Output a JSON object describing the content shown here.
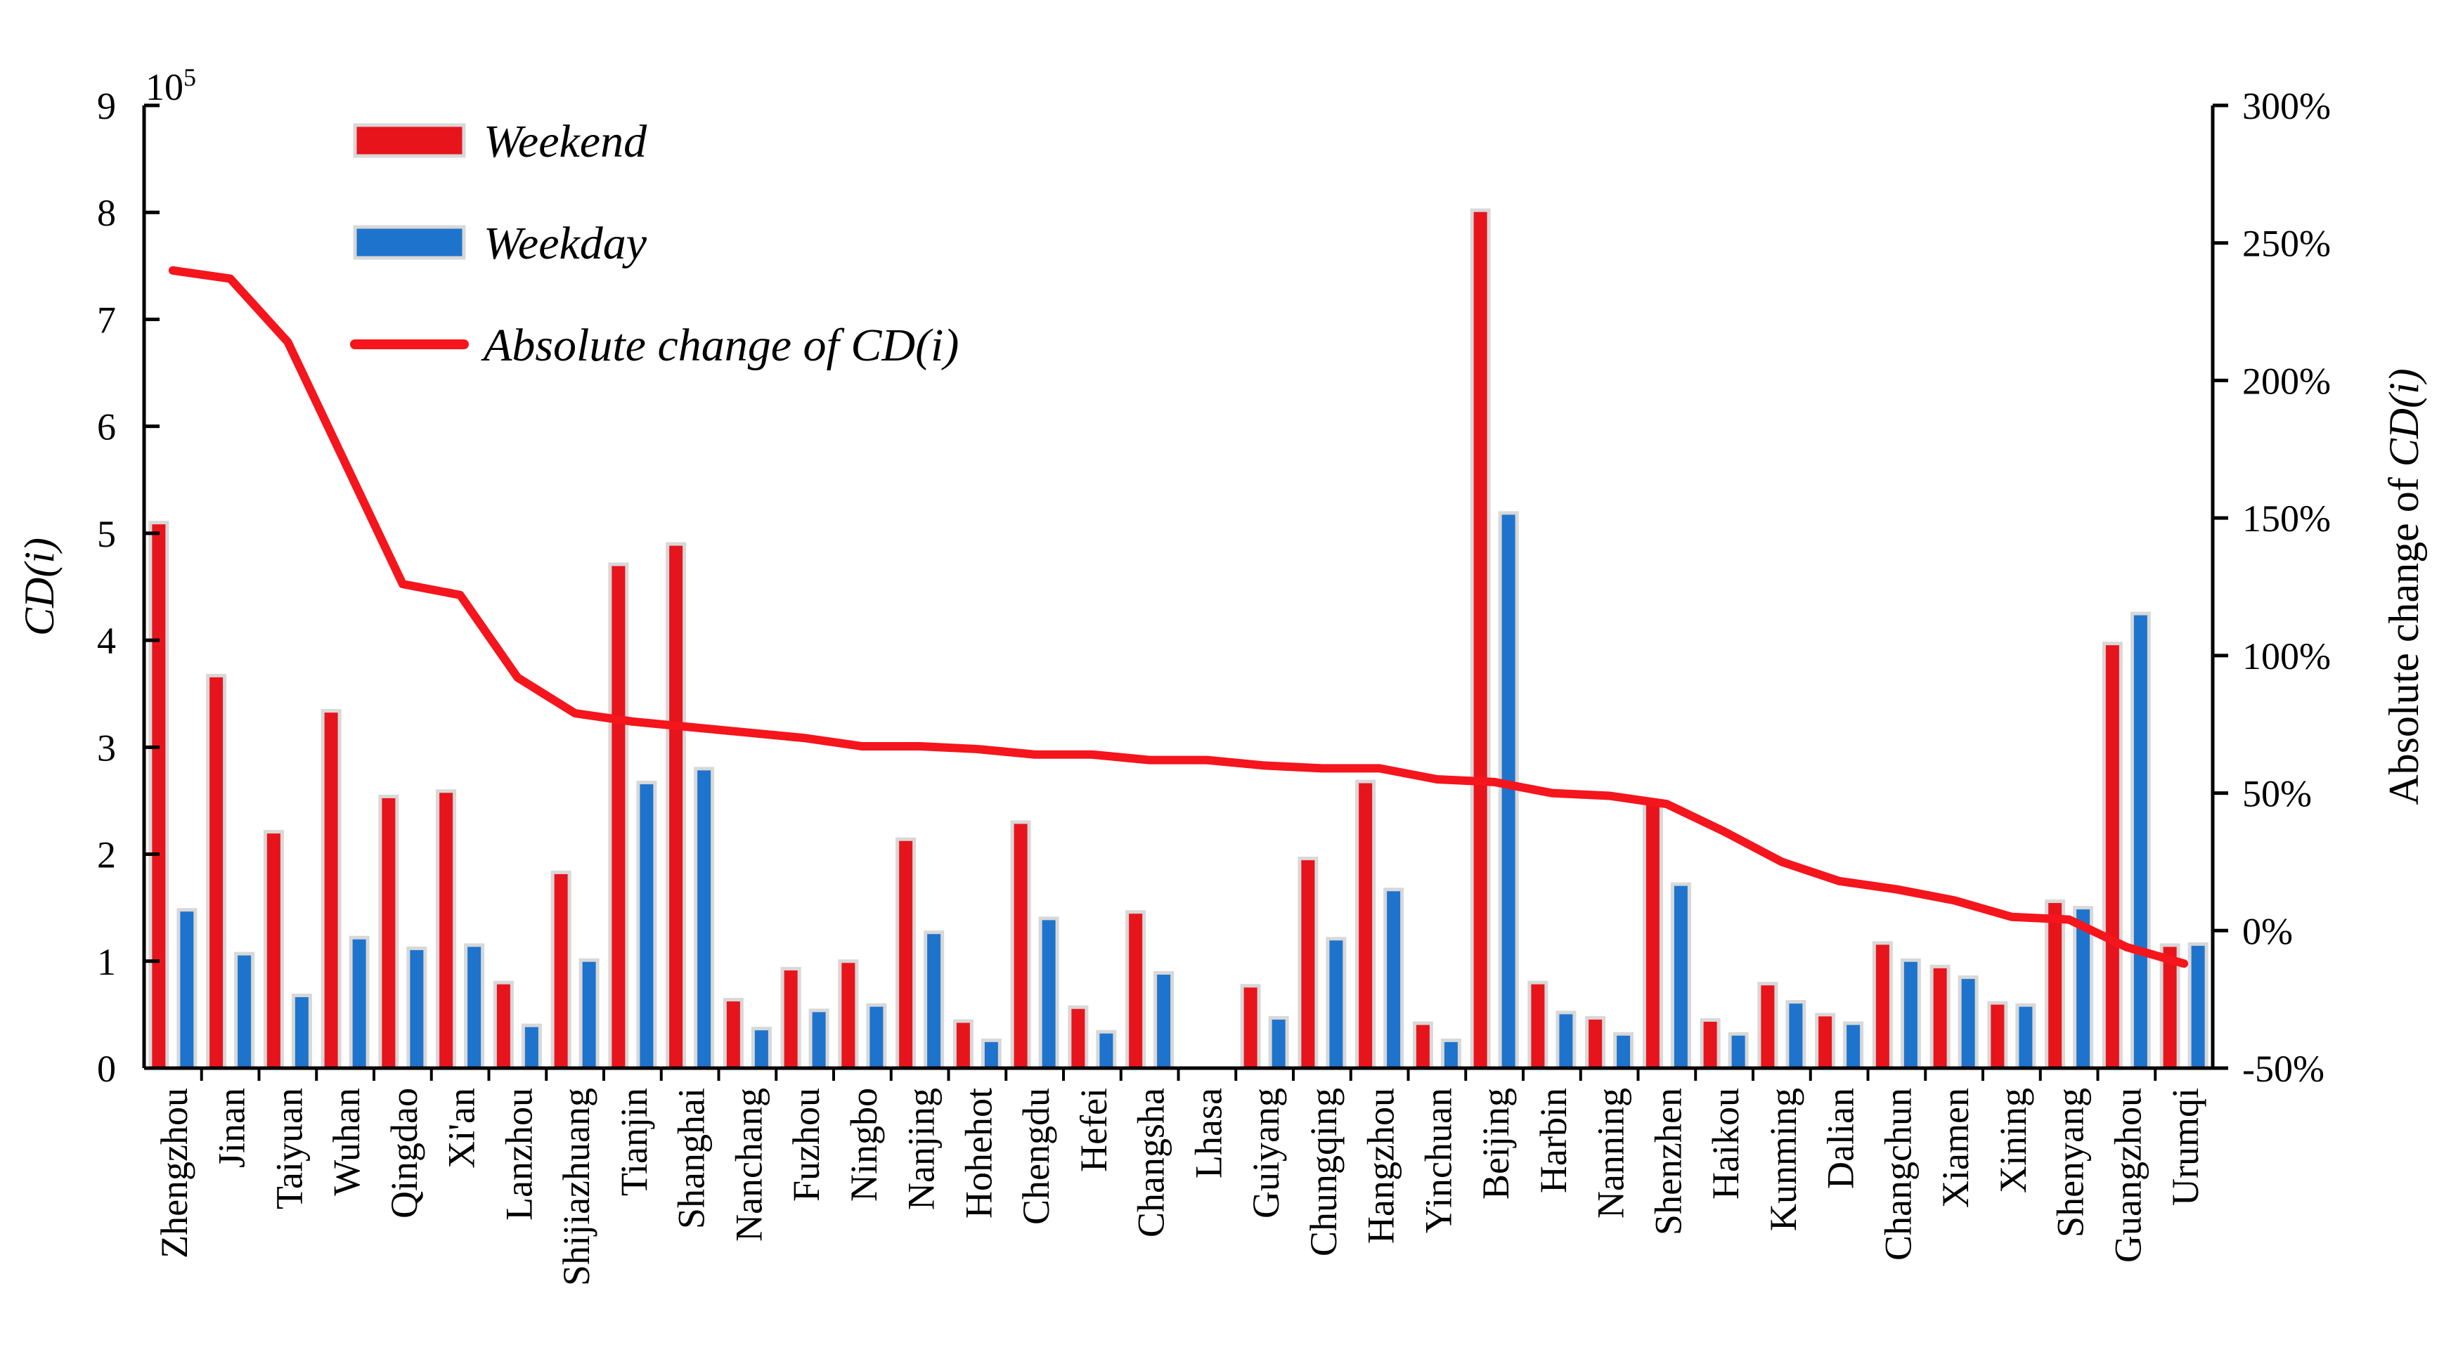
{
  "chart_data": {
    "type": "bar",
    "categories": [
      "Zhengzhou",
      "Jinan",
      "Taiyuan",
      "Wuhan",
      "Qingdao",
      "Xi'an",
      "Lanzhou",
      "Shijiazhuang",
      "Tianjin",
      "Shanghai",
      "Nanchang",
      "Fuzhou",
      "Ningbo",
      "Nanjing",
      "Hohehot",
      "Chengdu",
      "Hefei",
      "Changsha",
      "Lhasa",
      "Guiyang",
      "Chungqing",
      "Hangzhou",
      "Yinchuan",
      "Beijing",
      "Harbin",
      "Nanning",
      "Shenzhen",
      "Haikou",
      "Kunming",
      "Dalian",
      "Changchun",
      "Xiamen",
      "Xining",
      "Shenyang",
      "Guangzhou",
      "Urumqi"
    ],
    "series": [
      {
        "name": "Weekend",
        "axis": "left",
        "color": "#e8141c",
        "values": [
          5.1,
          3.67,
          2.21,
          3.34,
          2.54,
          2.59,
          0.8,
          1.83,
          4.71,
          4.9,
          0.64,
          0.93,
          1.0,
          2.14,
          0.44,
          2.3,
          0.57,
          1.46,
          0.0,
          0.77,
          1.96,
          2.68,
          0.42,
          8.02,
          0.8,
          0.47,
          2.5,
          0.45,
          0.79,
          0.5,
          1.17,
          0.95,
          0.61,
          1.56,
          3.97,
          1.15
        ]
      },
      {
        "name": "Weekday",
        "axis": "left",
        "color": "#1e74cc",
        "values": [
          1.48,
          1.07,
          0.68,
          1.22,
          1.12,
          1.15,
          0.4,
          1.01,
          2.67,
          2.8,
          0.37,
          0.54,
          0.59,
          1.27,
          0.26,
          1.4,
          0.34,
          0.89,
          0.0,
          0.47,
          1.21,
          1.67,
          0.26,
          5.19,
          0.52,
          0.32,
          1.72,
          0.32,
          0.62,
          0.42,
          1.01,
          0.85,
          0.59,
          1.5,
          4.25,
          1.16
        ]
      },
      {
        "name": "Absolute change of CD(i)",
        "axis": "right",
        "type": "line",
        "color": "#f5151c",
        "values": [
          240,
          237,
          214,
          170,
          126,
          122,
          92,
          79,
          76,
          74,
          72,
          70,
          67,
          67,
          66,
          64,
          64,
          62,
          62,
          60,
          59,
          59,
          55,
          54,
          50,
          49,
          46,
          36,
          25,
          18,
          15,
          11,
          5,
          4,
          -6,
          -12
        ]
      }
    ],
    "y_left": {
      "label": "CD(i)",
      "min": 0,
      "max": 9,
      "ticks": [
        0,
        1,
        2,
        3,
        4,
        5,
        6,
        7,
        8,
        9
      ],
      "multiplier": "10",
      "multiplier_exp": "5"
    },
    "y_right": {
      "label": "Absolute change of ",
      "label_italic": "CD(i)",
      "min": -50,
      "max": 300,
      "ticks": [
        -50,
        0,
        50,
        100,
        150,
        200,
        250,
        300
      ],
      "tick_suffix": "%"
    },
    "legend": {
      "placement": "top-left",
      "entries": [
        "Weekend",
        "Weekday",
        "Absolute change of CD(i)"
      ]
    },
    "grid": false
  }
}
